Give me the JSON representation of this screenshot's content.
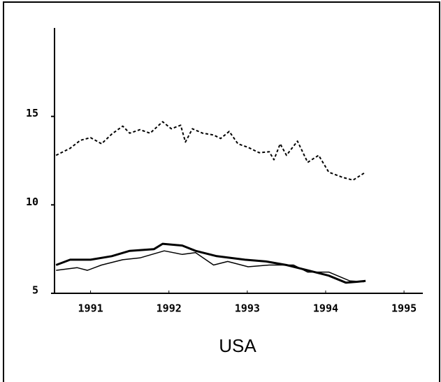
{
  "chart_data": {
    "type": "line",
    "title": "USA",
    "xlim": [
      1990.54,
      1995.24
    ],
    "ylim": [
      5,
      20
    ],
    "xticks": [
      1991,
      1992,
      1993,
      1994,
      1995
    ],
    "yticks": [
      5,
      10,
      15
    ],
    "series": [
      {
        "color": "#000000",
        "style": "dotted",
        "width": 2,
        "x": [
          1990.56,
          1990.74,
          1990.87,
          1991.0,
          1991.14,
          1991.27,
          1991.41,
          1991.5,
          1991.63,
          1991.76,
          1991.92,
          1992.03,
          1992.15,
          1992.21,
          1992.3,
          1992.43,
          1992.57,
          1992.66,
          1992.77,
          1992.88,
          1993.01,
          1993.15,
          1993.28,
          1993.34,
          1993.42,
          1993.5,
          1993.64,
          1993.77,
          1993.91,
          1994.04,
          1994.22,
          1994.35,
          1994.51
        ],
        "values": [
          12.8,
          13.2,
          13.65,
          13.8,
          13.45,
          14.0,
          14.45,
          14.05,
          14.25,
          14.05,
          14.7,
          14.3,
          14.5,
          13.55,
          14.3,
          14.05,
          13.95,
          13.75,
          14.15,
          13.45,
          13.25,
          12.95,
          13.0,
          12.55,
          13.45,
          12.8,
          13.6,
          12.4,
          12.8,
          11.85,
          11.55,
          11.4,
          11.85
        ]
      },
      {
        "color": "#000000",
        "style": "solid",
        "width": 3,
        "x": [
          1990.56,
          1990.74,
          1991.0,
          1991.27,
          1991.5,
          1991.81,
          1991.92,
          1992.17,
          1992.34,
          1992.61,
          1992.97,
          1993.24,
          1993.5,
          1993.77,
          1994.04,
          1994.26,
          1994.4,
          1994.51
        ],
        "values": [
          6.6,
          6.9,
          6.9,
          7.1,
          7.4,
          7.5,
          7.8,
          7.7,
          7.4,
          7.1,
          6.9,
          6.8,
          6.6,
          6.3,
          6.0,
          5.6,
          5.65,
          5.7
        ]
      },
      {
        "color": "#000000",
        "style": "solid",
        "width": 1.5,
        "x": [
          1990.56,
          1990.83,
          1990.96,
          1991.14,
          1991.41,
          1991.63,
          1991.94,
          1992.17,
          1992.34,
          1992.57,
          1992.75,
          1993.01,
          1993.28,
          1993.59,
          1993.77,
          1994.04,
          1994.31,
          1994.49
        ],
        "values": [
          6.3,
          6.45,
          6.3,
          6.6,
          6.9,
          7.0,
          7.4,
          7.2,
          7.3,
          6.6,
          6.8,
          6.5,
          6.6,
          6.6,
          6.2,
          6.2,
          5.7,
          5.65
        ]
      }
    ]
  }
}
